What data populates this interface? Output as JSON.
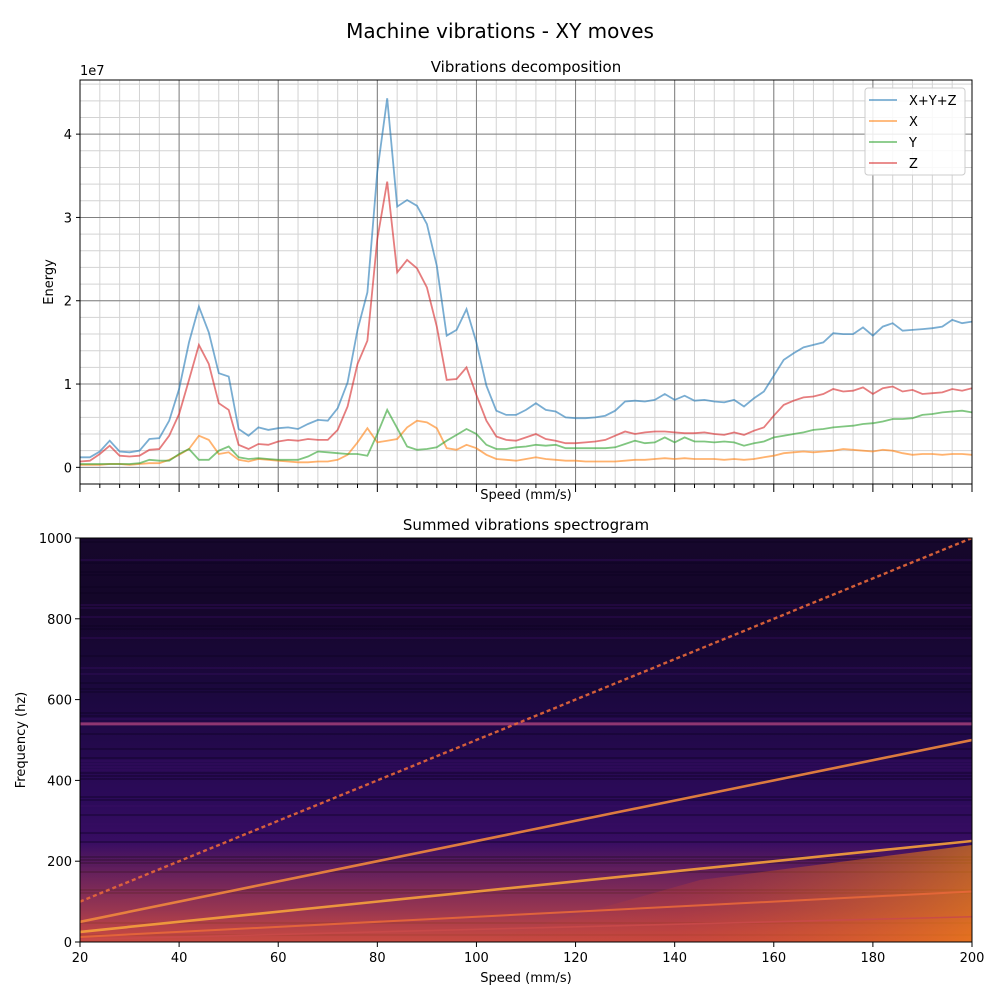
{
  "figure_title": "Machine vibrations - XY moves",
  "chart_data": [
    {
      "type": "line",
      "title": "Vibrations decomposition",
      "xlabel": "Speed (mm/s)",
      "ylabel": "Energy",
      "y_multiplier_label": "1e7",
      "xlim": [
        20,
        200
      ],
      "ylim": [
        -2000000,
        46500000
      ],
      "x_tick_labels_shown": false,
      "y_ticks": [
        0,
        10000000,
        20000000,
        30000000,
        40000000
      ],
      "y_tick_labels": [
        "0",
        "1",
        "2",
        "3",
        "4"
      ],
      "grid": "major and minor",
      "legend_position": "top-right",
      "x": [
        20,
        22,
        24,
        26,
        28,
        30,
        32,
        34,
        36,
        38,
        40,
        42,
        44,
        46,
        48,
        50,
        52,
        54,
        56,
        58,
        60,
        62,
        64,
        66,
        68,
        70,
        72,
        74,
        76,
        78,
        80,
        82,
        84,
        86,
        88,
        90,
        92,
        94,
        96,
        98,
        100,
        102,
        104,
        106,
        108,
        110,
        112,
        114,
        116,
        118,
        120,
        122,
        124,
        126,
        128,
        130,
        132,
        134,
        136,
        138,
        140,
        142,
        144,
        146,
        148,
        150,
        152,
        154,
        156,
        158,
        160,
        162,
        164,
        166,
        168,
        170,
        172,
        174,
        176,
        178,
        180,
        182,
        184,
        186,
        188,
        190,
        192,
        194,
        196,
        198,
        200
      ],
      "series": [
        {
          "name": "X+Y+Z",
          "color": "#1f77b4",
          "values": [
            1.2,
            1.2,
            1.9,
            3.2,
            1.9,
            1.8,
            2.0,
            3.4,
            3.5,
            5.6,
            9.4,
            15.0,
            19.3,
            16.2,
            11.3,
            10.9,
            4.6,
            3.8,
            4.8,
            4.5,
            4.7,
            4.8,
            4.6,
            5.2,
            5.7,
            5.6,
            7.1,
            10.2,
            16.5,
            21.0,
            35.5,
            44.3,
            31.3,
            32.1,
            31.4,
            29.2,
            24.2,
            15.8,
            16.5,
            19.0,
            15.0,
            9.8,
            6.8,
            6.3,
            6.3,
            6.9,
            7.7,
            6.9,
            6.7,
            6.0,
            5.9,
            5.9,
            6.0,
            6.2,
            6.8,
            7.9,
            8.0,
            7.9,
            8.1,
            8.8,
            8.1,
            8.6,
            8.0,
            8.1,
            7.9,
            7.8,
            8.1,
            7.3,
            8.3,
            9.1,
            11.0,
            12.9,
            13.7,
            14.4,
            14.7,
            15.0,
            16.1,
            16.0,
            16.0,
            16.8,
            15.8,
            16.9,
            17.3,
            16.4,
            16.5,
            16.6,
            16.7,
            16.9,
            17.7,
            17.3,
            17.5
          ]
        },
        {
          "name": "X",
          "color": "#ff7f0e",
          "values": [
            0.3,
            0.3,
            0.3,
            0.4,
            0.4,
            0.3,
            0.4,
            0.5,
            0.5,
            0.9,
            1.5,
            2.2,
            3.8,
            3.3,
            1.6,
            1.8,
            0.9,
            0.7,
            1.0,
            0.9,
            0.8,
            0.7,
            0.6,
            0.6,
            0.7,
            0.7,
            0.9,
            1.5,
            3.0,
            4.7,
            3.0,
            3.2,
            3.4,
            4.8,
            5.6,
            5.4,
            4.7,
            2.3,
            2.1,
            2.7,
            2.3,
            1.5,
            1.0,
            0.9,
            0.8,
            1.0,
            1.2,
            1.0,
            0.9,
            0.8,
            0.8,
            0.7,
            0.7,
            0.7,
            0.7,
            0.8,
            0.9,
            0.9,
            1.0,
            1.1,
            1.0,
            1.1,
            1.0,
            1.0,
            1.0,
            0.9,
            1.0,
            0.9,
            1.0,
            1.2,
            1.4,
            1.7,
            1.8,
            1.9,
            1.8,
            1.9,
            2.0,
            2.2,
            2.1,
            2.0,
            1.9,
            2.1,
            2.0,
            1.7,
            1.5,
            1.6,
            1.6,
            1.5,
            1.6,
            1.6,
            1.5
          ]
        },
        {
          "name": "Y",
          "color": "#2ca02c",
          "values": [
            0.4,
            0.4,
            0.4,
            0.4,
            0.4,
            0.4,
            0.5,
            0.9,
            0.8,
            0.8,
            1.6,
            2.2,
            0.9,
            0.9,
            2.0,
            2.5,
            1.2,
            1.0,
            1.1,
            1.0,
            0.9,
            0.9,
            0.9,
            1.3,
            1.9,
            1.8,
            1.7,
            1.6,
            1.6,
            1.4,
            4.0,
            6.9,
            4.7,
            2.5,
            2.1,
            2.2,
            2.4,
            3.2,
            3.9,
            4.6,
            4.0,
            2.7,
            2.2,
            2.2,
            2.4,
            2.5,
            2.7,
            2.6,
            2.7,
            2.3,
            2.3,
            2.3,
            2.3,
            2.3,
            2.4,
            2.8,
            3.2,
            2.9,
            3.0,
            3.6,
            3.0,
            3.6,
            3.1,
            3.1,
            3.0,
            3.1,
            3.0,
            2.6,
            2.9,
            3.1,
            3.6,
            3.8,
            4.0,
            4.2,
            4.5,
            4.6,
            4.8,
            4.9,
            5.0,
            5.2,
            5.3,
            5.5,
            5.8,
            5.8,
            5.9,
            6.3,
            6.4,
            6.6,
            6.7,
            6.8,
            6.6
          ]
        },
        {
          "name": "Z",
          "color": "#d62728",
          "values": [
            0.7,
            0.8,
            1.6,
            2.6,
            1.4,
            1.3,
            1.4,
            2.1,
            2.2,
            3.8,
            6.4,
            10.5,
            14.7,
            12.4,
            7.7,
            6.9,
            2.7,
            2.2,
            2.8,
            2.7,
            3.1,
            3.3,
            3.2,
            3.4,
            3.3,
            3.3,
            4.5,
            7.3,
            12.4,
            15.2,
            27.4,
            34.3,
            23.4,
            24.9,
            23.9,
            21.6,
            16.9,
            10.5,
            10.6,
            12.0,
            8.7,
            5.6,
            3.7,
            3.3,
            3.2,
            3.6,
            4.0,
            3.4,
            3.2,
            2.9,
            2.9,
            3.0,
            3.1,
            3.3,
            3.8,
            4.3,
            4.0,
            4.2,
            4.3,
            4.3,
            4.2,
            4.1,
            4.1,
            4.2,
            4.0,
            3.9,
            4.2,
            3.9,
            4.4,
            4.8,
            6.2,
            7.5,
            8.0,
            8.4,
            8.5,
            8.8,
            9.4,
            9.1,
            9.2,
            9.6,
            8.8,
            9.5,
            9.7,
            9.1,
            9.3,
            8.8,
            8.9,
            9.0,
            9.4,
            9.2,
            9.5
          ]
        }
      ],
      "values_unit_multiplier": 1000000
    },
    {
      "type": "heatmap",
      "title": "Summed vibrations spectrogram",
      "xlabel": "Speed (mm/s)",
      "ylabel": "Frequency (hz)",
      "xlim": [
        20,
        200
      ],
      "ylim": [
        0,
        1000
      ],
      "x_ticks": [
        20,
        40,
        60,
        80,
        100,
        120,
        140,
        160,
        180,
        200
      ],
      "y_ticks": [
        0,
        200,
        400,
        600,
        800,
        1000
      ],
      "colormap": "inferno",
      "features": {
        "bright_lines_freq_per_speed": [
          5,
          2.5,
          1.25,
          0.625,
          0.3125
        ],
        "horizontal_band_hz": 540,
        "low_freq_glow": "orange near 0-250 hz increasing with speed"
      }
    }
  ]
}
